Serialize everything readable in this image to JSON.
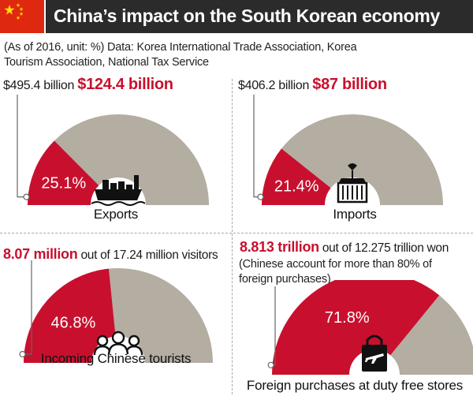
{
  "header": {
    "title": "China’s impact on the South Korean economy"
  },
  "note": "(As of 2016, unit: %) Data: Korea International Trade Association, Korea Tourism Association, National Tax Service",
  "colors": {
    "accent": "#c8102e",
    "rest": "#b3ada2",
    "title_bg": "#2b2b2b"
  },
  "chart_data": [
    {
      "type": "pie",
      "name": "Exports",
      "total_label": "$495.4 billion",
      "china_label": "$124.4 billion",
      "value": 25.1,
      "value_label": "25.1%",
      "caption": "Exports",
      "icon": "ship-icon"
    },
    {
      "type": "pie",
      "name": "Imports",
      "total_label": "$406.2 billion",
      "china_label": "$87 billion",
      "value": 21.4,
      "value_label": "21.4%",
      "caption": "Imports",
      "icon": "container-crane-icon"
    },
    {
      "type": "pie",
      "name": "Incoming Chinese tourists",
      "china_label": "8.07 million",
      "rest_label": " out of 17.24 million visitors",
      "value": 46.8,
      "value_label": "46.8%",
      "caption": "Incoming Chinese tourists",
      "icon": "people-icon"
    },
    {
      "type": "pie",
      "name": "Foreign purchases at duty free stores",
      "china_label": "8.813 trillion",
      "rest_label": " out of 12.275 trillion won",
      "sub_note": "(Chinese account for more than 80% of foreign purchases)",
      "value": 71.8,
      "value_label": "71.8%",
      "caption": "Foreign purchases at duty free stores",
      "icon": "shopping-bag-plane-icon"
    }
  ]
}
